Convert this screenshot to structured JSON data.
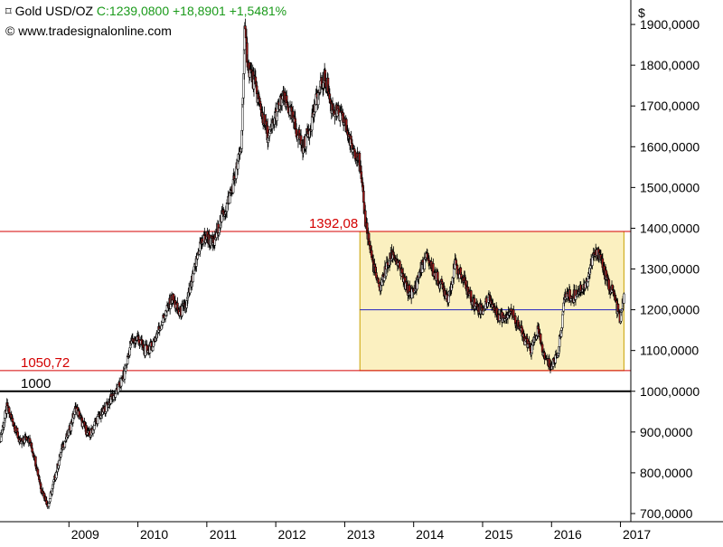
{
  "header": {
    "instrument": "Gold USD/OZ",
    "close_label": "C:1239,0800",
    "change_abs": "+18,8901",
    "change_pct": "+1,5481%",
    "pin_icon": "pushpin-icon"
  },
  "source": {
    "symbol": "©",
    "text": "www.tradesignalonline.com"
  },
  "chart_data": {
    "type": "line",
    "subtype": "candlestick-daily",
    "title": "Gold USD/OZ",
    "y_unit": "$",
    "ylim": [
      680,
      1960
    ],
    "yticks": [
      "1900,0000",
      "1800,0000",
      "1700,0000",
      "1600,0000",
      "1500,0000",
      "1400,0000",
      "1300,0000",
      "1200,0000",
      "1100,0000",
      "1000,0000",
      "900,0000",
      "800,0000",
      "700,0000"
    ],
    "ytick_values": [
      1900,
      1800,
      1700,
      1600,
      1500,
      1400,
      1300,
      1200,
      1100,
      1000,
      900,
      800,
      700
    ],
    "xlim": [
      2008.0,
      2017.15
    ],
    "xticks": [
      "2009",
      "2010",
      "2011",
      "2012",
      "2013",
      "2014",
      "2015",
      "2016",
      "2017"
    ],
    "xtick_values": [
      2009,
      2010,
      2011,
      2012,
      2013,
      2014,
      2015,
      2016,
      2017
    ],
    "series": [
      {
        "name": "Gold USD/OZ",
        "x": [
          2008.0,
          2008.1,
          2008.2,
          2008.3,
          2008.4,
          2008.5,
          2008.6,
          2008.7,
          2008.8,
          2008.9,
          2009.0,
          2009.1,
          2009.2,
          2009.3,
          2009.4,
          2009.5,
          2009.6,
          2009.7,
          2009.8,
          2009.9,
          2010.0,
          2010.1,
          2010.2,
          2010.3,
          2010.4,
          2010.5,
          2010.6,
          2010.7,
          2010.8,
          2010.9,
          2011.0,
          2011.1,
          2011.2,
          2011.3,
          2011.4,
          2011.5,
          2011.55,
          2011.6,
          2011.7,
          2011.8,
          2011.9,
          2012.0,
          2012.1,
          2012.2,
          2012.3,
          2012.4,
          2012.5,
          2012.6,
          2012.7,
          2012.75,
          2012.8,
          2012.9,
          2013.0,
          2013.1,
          2013.2,
          2013.3,
          2013.4,
          2013.5,
          2013.6,
          2013.7,
          2013.8,
          2013.9,
          2014.0,
          2014.1,
          2014.2,
          2014.3,
          2014.4,
          2014.5,
          2014.6,
          2014.7,
          2014.8,
          2014.9,
          2015.0,
          2015.1,
          2015.2,
          2015.3,
          2015.4,
          2015.5,
          2015.6,
          2015.7,
          2015.8,
          2015.9,
          2016.0,
          2016.1,
          2016.2,
          2016.3,
          2016.4,
          2016.5,
          2016.6,
          2016.7,
          2016.8,
          2016.9,
          2017.0,
          2017.05
        ],
        "close": [
          880,
          960,
          920,
          870,
          890,
          840,
          760,
          720,
          790,
          860,
          900,
          960,
          920,
          890,
          930,
          950,
          980,
          1000,
          1040,
          1120,
          1130,
          1100,
          1110,
          1150,
          1190,
          1230,
          1190,
          1210,
          1280,
          1360,
          1380,
          1360,
          1420,
          1460,
          1520,
          1600,
          1880,
          1800,
          1750,
          1680,
          1620,
          1680,
          1720,
          1690,
          1640,
          1600,
          1650,
          1720,
          1770,
          1750,
          1700,
          1680,
          1660,
          1600,
          1580,
          1420,
          1320,
          1250,
          1300,
          1340,
          1300,
          1250,
          1240,
          1300,
          1330,
          1290,
          1260,
          1230,
          1310,
          1280,
          1240,
          1210,
          1200,
          1230,
          1190,
          1180,
          1200,
          1170,
          1130,
          1100,
          1150,
          1080,
          1060,
          1100,
          1240,
          1230,
          1250,
          1260,
          1330,
          1340,
          1270,
          1240,
          1170,
          1239
        ]
      }
    ],
    "annotations": {
      "h_lines": [
        {
          "label": "1392,08",
          "value": 1392.08,
          "color": "#d40000"
        },
        {
          "label": "1050,72",
          "value": 1050.72,
          "color": "#d40000"
        },
        {
          "label": "1000",
          "value": 1000,
          "color": "#000000"
        },
        {
          "label": "",
          "value": 1200,
          "color": "#2020c0"
        }
      ],
      "range_box": {
        "x_start": 2013.22,
        "x_end": 2017.05,
        "y_low": 1050.72,
        "y_high": 1392.08,
        "fill": "#fbf0c0",
        "stroke": "#c9a100"
      }
    },
    "colors": {
      "candle_up": "#ffffff",
      "candle_down": "#a01818",
      "wick": "#000000",
      "grid": "none"
    },
    "grid": false,
    "legend": "none"
  }
}
